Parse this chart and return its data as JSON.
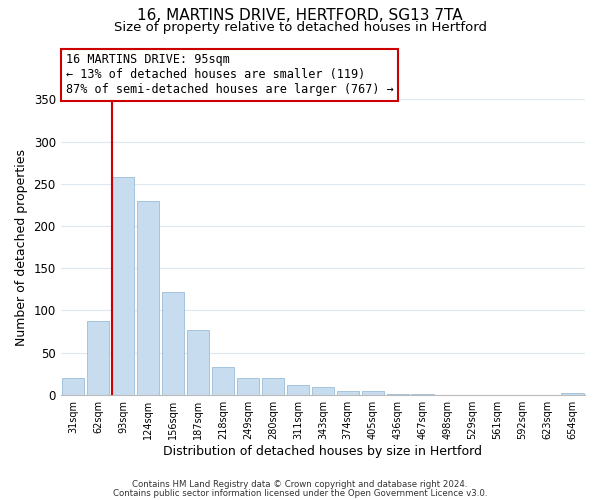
{
  "title": "16, MARTINS DRIVE, HERTFORD, SG13 7TA",
  "subtitle": "Size of property relative to detached houses in Hertford",
  "xlabel": "Distribution of detached houses by size in Hertford",
  "ylabel": "Number of detached properties",
  "bar_labels": [
    "31sqm",
    "62sqm",
    "93sqm",
    "124sqm",
    "156sqm",
    "187sqm",
    "218sqm",
    "249sqm",
    "280sqm",
    "311sqm",
    "343sqm",
    "374sqm",
    "405sqm",
    "436sqm",
    "467sqm",
    "498sqm",
    "529sqm",
    "561sqm",
    "592sqm",
    "623sqm",
    "654sqm"
  ],
  "bar_values": [
    20,
    87,
    258,
    230,
    122,
    77,
    33,
    20,
    20,
    11,
    9,
    4,
    4,
    1,
    1,
    0,
    0,
    0,
    0,
    0,
    2
  ],
  "bar_color": "#c8dcf0",
  "bar_edge_color": "#9abcd8",
  "property_line_index": 2,
  "property_line_color": "#cc0000",
  "ylim": [
    0,
    350
  ],
  "yticks": [
    0,
    50,
    100,
    150,
    200,
    250,
    300,
    350
  ],
  "annotation_title": "16 MARTINS DRIVE: 95sqm",
  "annotation_line1": "← 13% of detached houses are smaller (119)",
  "annotation_line2": "87% of semi-detached houses are larger (767) →",
  "annotation_box_color": "#ffffff",
  "annotation_box_edge": "#cc0000",
  "footer_line1": "Contains HM Land Registry data © Crown copyright and database right 2024.",
  "footer_line2": "Contains public sector information licensed under the Open Government Licence v3.0.",
  "background_color": "#ffffff",
  "grid_color": "#dce8f0",
  "title_fontsize": 11,
  "subtitle_fontsize": 9.5,
  "ylabel_fontsize": 9,
  "xlabel_fontsize": 9
}
